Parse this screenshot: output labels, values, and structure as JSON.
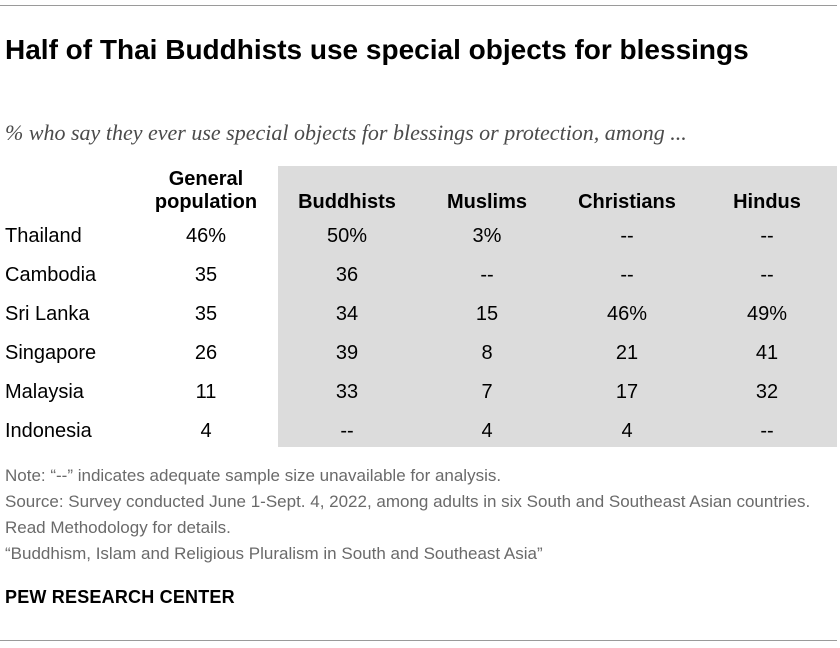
{
  "title": "Half of Thai Buddhists use special objects for blessings",
  "subtitle": "% who say they ever use special objects for blessings or protection, among ...",
  "chart_data": {
    "type": "table",
    "columns": [
      {
        "label": "General population",
        "shaded": false
      },
      {
        "label": "Buddhists",
        "shaded": true
      },
      {
        "label": "Muslims",
        "shaded": true
      },
      {
        "label": "Christians",
        "shaded": true
      },
      {
        "label": "Hindus",
        "shaded": true
      }
    ],
    "rows": [
      {
        "country": "Thailand",
        "cells": [
          "46%",
          "50%",
          "3%",
          "--",
          "--"
        ]
      },
      {
        "country": "Cambodia",
        "cells": [
          "35",
          "36",
          "--",
          "--",
          "--"
        ]
      },
      {
        "country": "Sri Lanka",
        "cells": [
          "35",
          "34",
          "15",
          "46%",
          "49%"
        ]
      },
      {
        "country": "Singapore",
        "cells": [
          "26",
          "39",
          "8",
          "21",
          "41"
        ]
      },
      {
        "country": "Malaysia",
        "cells": [
          "11",
          "33",
          "7",
          "17",
          "32"
        ]
      },
      {
        "country": "Indonesia",
        "cells": [
          "4",
          "--",
          "4",
          "4",
          "--"
        ]
      }
    ]
  },
  "notes": {
    "note": "Note: “--” indicates adequate sample size unavailable for analysis.",
    "source": "Source: Survey conducted June 1-Sept. 4, 2022, among adults in six South and Southeast Asian countries. Read Methodology for details.",
    "report": "“Buddhism, Islam and Religious Pluralism in South and Southeast Asia”"
  },
  "brand": "PEW RESEARCH CENTER"
}
